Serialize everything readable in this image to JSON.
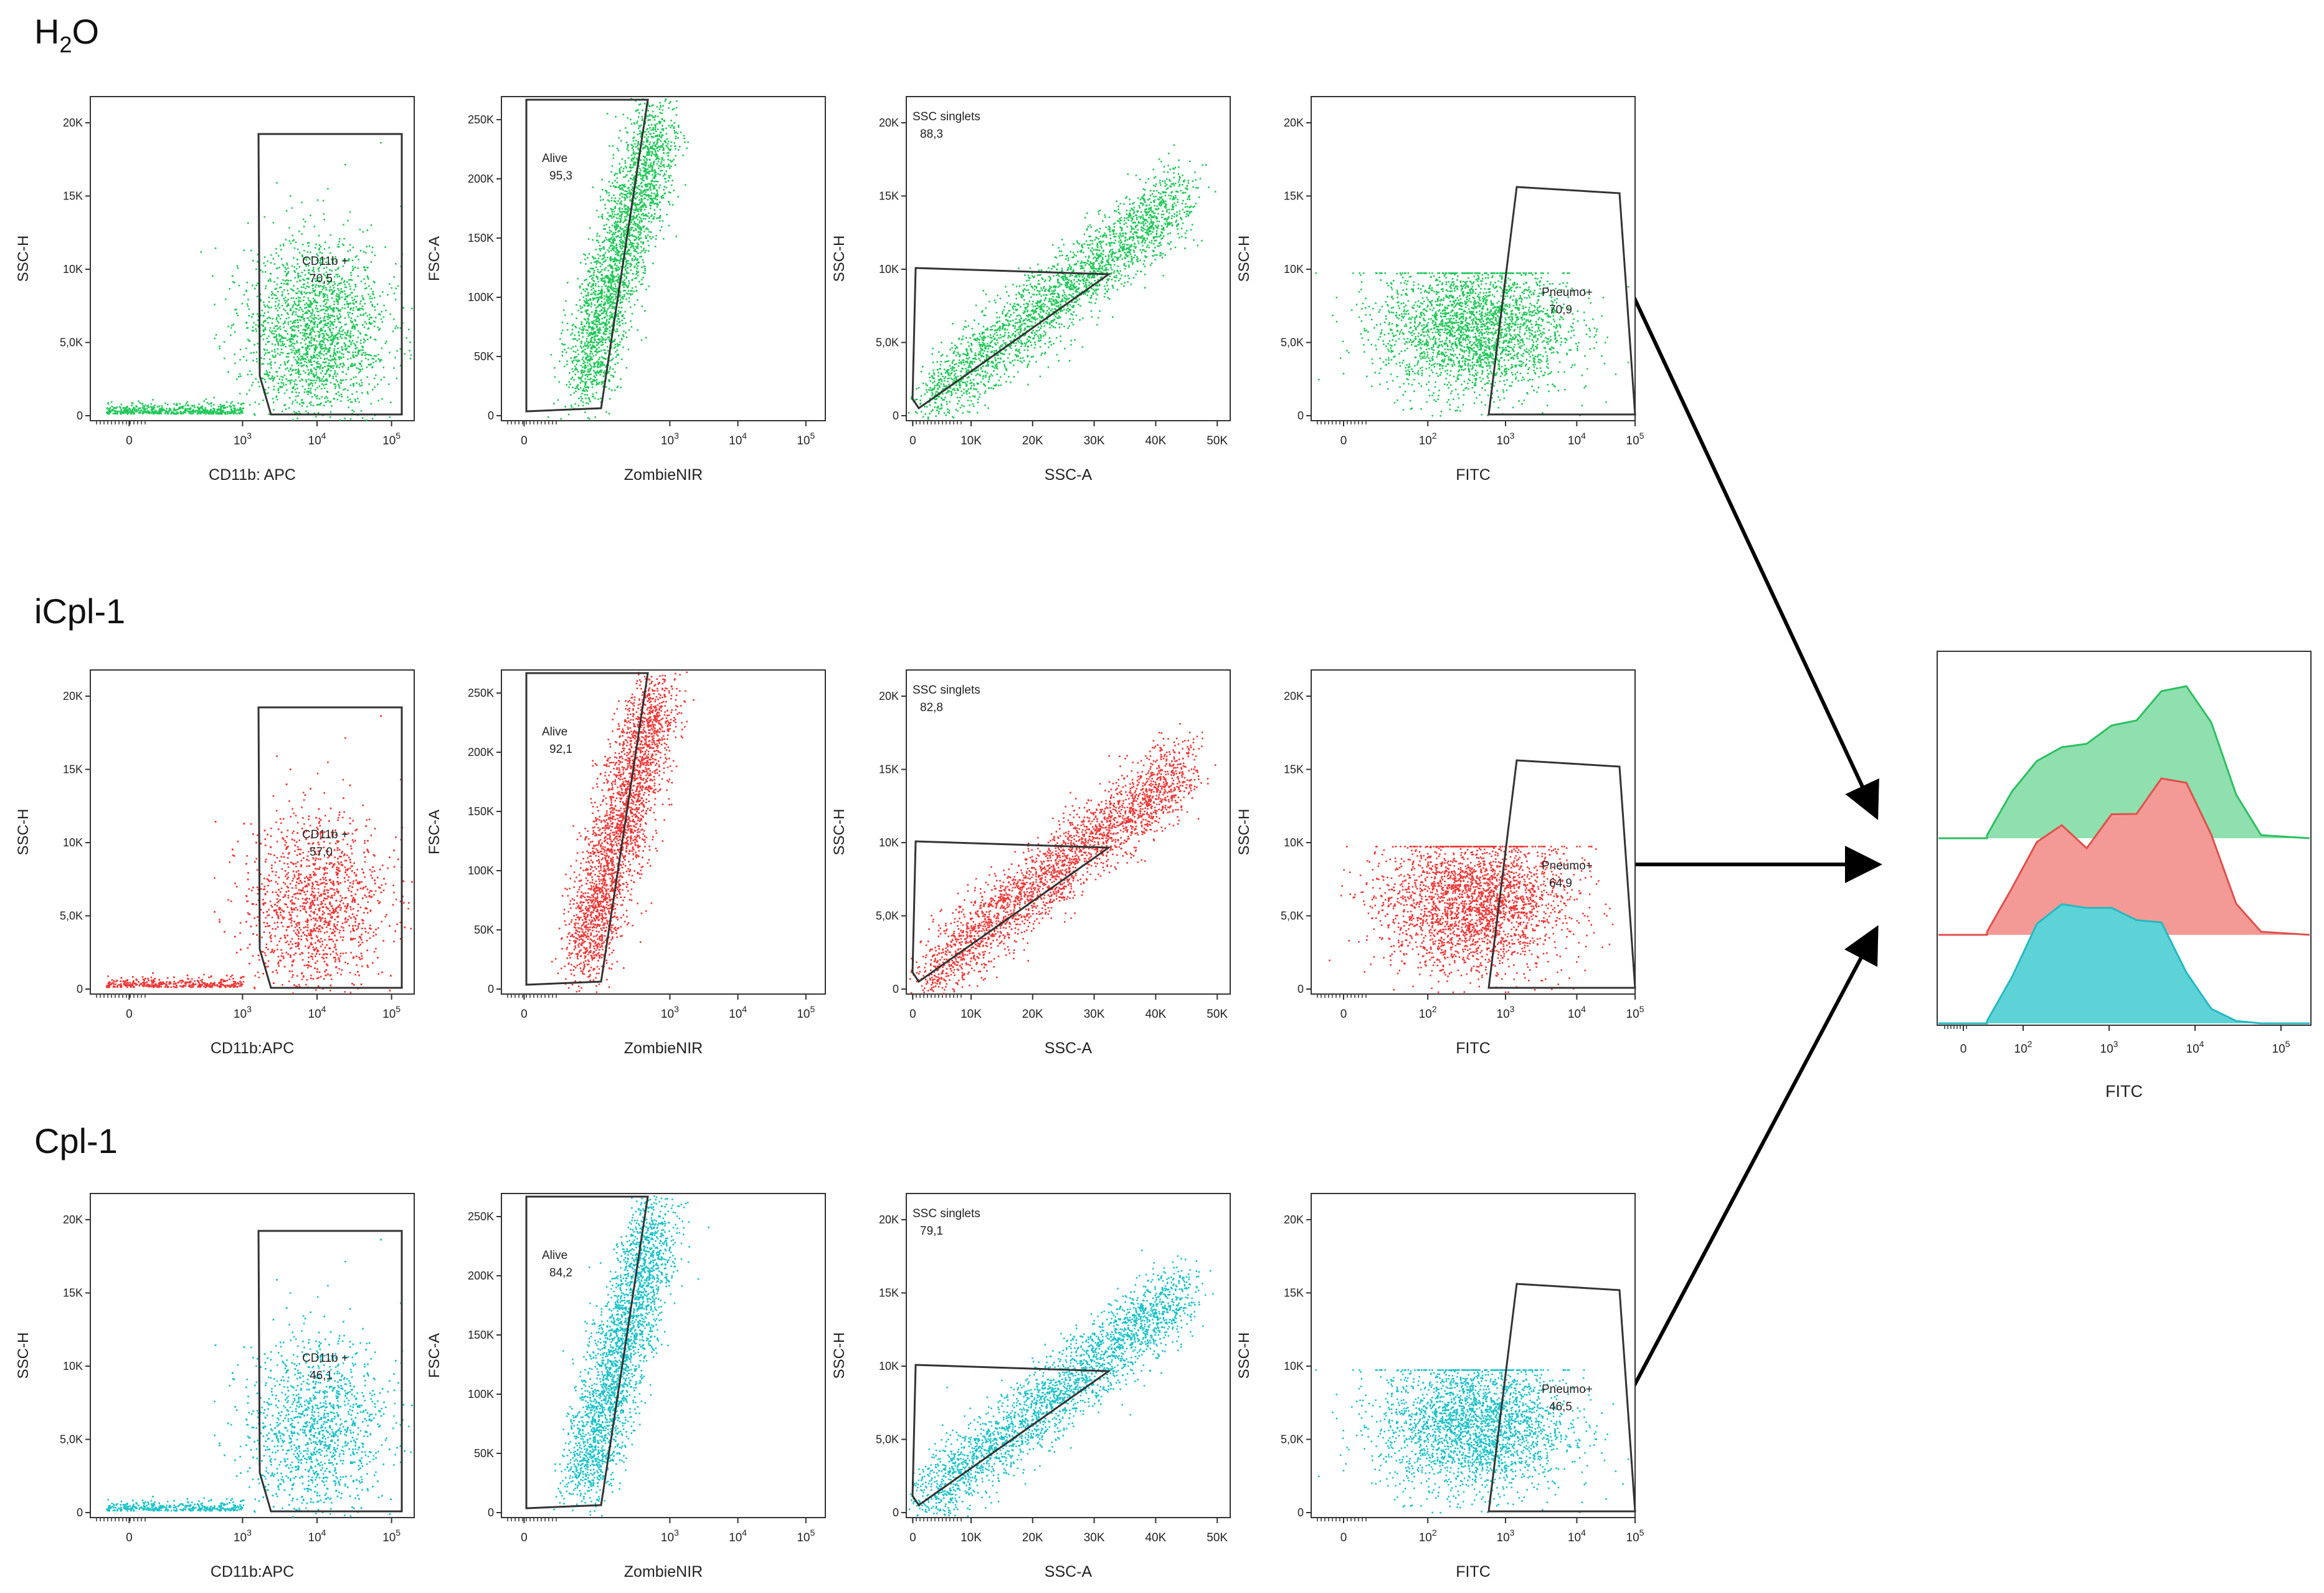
{
  "colors": {
    "h2o": "#1fc858",
    "icpl1": "#f03535",
    "cpl1": "#18c2c8",
    "gate": "#333333",
    "frame": "#333333",
    "arrow": "#000000",
    "hist_fill": {
      "h2o": "#8fe0ae",
      "icpl1": "#f39a96",
      "cpl1": "#5dd3d8"
    },
    "hist_line": {
      "h2o": "#2cbf61",
      "icpl1": "#e0504c",
      "cpl1": "#25b9c0"
    }
  },
  "rows": [
    {
      "key": "h2o",
      "label_main": "H",
      "label_sub": "2",
      "label_tail": "O"
    },
    {
      "key": "icpl1",
      "label_main": "iCpl-1",
      "label_sub": "",
      "label_tail": ""
    },
    {
      "key": "cpl1",
      "label_main": "Cpl-1",
      "label_sub": "",
      "label_tail": ""
    }
  ],
  "axes": {
    "ssc_h_ticks": [
      "0",
      "5,0K",
      "10K",
      "15K",
      "20K"
    ],
    "fsc_a_ticks": [
      "0",
      "50K",
      "100K",
      "150K",
      "200K",
      "250K"
    ],
    "ssc_a_ticks": [
      "0",
      "10K",
      "20K",
      "30K",
      "40K",
      "50K"
    ],
    "log_ticks_full": [
      "0",
      "10^2",
      "10^3",
      "10^4",
      "10^5"
    ],
    "log_ticks_apc": [
      "0",
      "10^3",
      "10^4",
      "10^5"
    ],
    "ylabel_ssc_h": "SSC-H",
    "ylabel_fsc_a": "FSC-A",
    "xlabel_zombie": "ZombieNIR",
    "xlabel_ssc_a": "SSC-A",
    "xlabel_fitc": "FITC"
  },
  "chart_data": [
    {
      "type": "scatter",
      "row": "h2o",
      "panel": 1,
      "xlabel": "CD11b: APC",
      "ylabel": "SSC-H",
      "x_scale": "biexponential",
      "ylim": [
        0,
        20000
      ],
      "gate": "CD11b +",
      "gate_value": "70,5"
    },
    {
      "type": "scatter",
      "row": "h2o",
      "panel": 2,
      "xlabel": "ZombieNIR",
      "ylabel": "FSC-A",
      "x_scale": "biexponential",
      "ylim": [
        0,
        262144
      ],
      "gate": "Alive",
      "gate_value": "95,3"
    },
    {
      "type": "scatter",
      "row": "h2o",
      "panel": 3,
      "xlabel": "SSC-A",
      "ylabel": "SSC-H",
      "xlim": [
        0,
        52000
      ],
      "ylim": [
        0,
        20000
      ],
      "gate": "SSC singlets",
      "gate_value": "88,3"
    },
    {
      "type": "scatter",
      "row": "h2o",
      "panel": 4,
      "xlabel": "FITC",
      "ylabel": "SSC-H",
      "x_scale": "biexponential",
      "ylim": [
        0,
        20000
      ],
      "gate": "Pneumo+",
      "gate_value": "70,9"
    },
    {
      "type": "scatter",
      "row": "icpl1",
      "panel": 1,
      "xlabel": "CD11b:APC",
      "ylabel": "SSC-H",
      "x_scale": "biexponential",
      "ylim": [
        0,
        20000
      ],
      "gate": "CD11b +",
      "gate_value": "57,0"
    },
    {
      "type": "scatter",
      "row": "icpl1",
      "panel": 2,
      "xlabel": "ZombieNIR",
      "ylabel": "FSC-A",
      "x_scale": "biexponential",
      "ylim": [
        0,
        262144
      ],
      "gate": "Alive",
      "gate_value": "92,1"
    },
    {
      "type": "scatter",
      "row": "icpl1",
      "panel": 3,
      "xlabel": "SSC-A",
      "ylabel": "SSC-H",
      "xlim": [
        0,
        52000
      ],
      "ylim": [
        0,
        20000
      ],
      "gate": "SSC singlets",
      "gate_value": "82,8"
    },
    {
      "type": "scatter",
      "row": "icpl1",
      "panel": 4,
      "xlabel": "FITC",
      "ylabel": "SSC-H",
      "x_scale": "biexponential",
      "ylim": [
        0,
        20000
      ],
      "gate": "Pneumo+",
      "gate_value": "64,9"
    },
    {
      "type": "scatter",
      "row": "cpl1",
      "panel": 1,
      "xlabel": "CD11b:APC",
      "ylabel": "SSC-H",
      "x_scale": "biexponential",
      "ylim": [
        0,
        20000
      ],
      "gate": "CD11b +",
      "gate_value": "46,1"
    },
    {
      "type": "scatter",
      "row": "cpl1",
      "panel": 2,
      "xlabel": "ZombieNIR",
      "ylabel": "FSC-A",
      "x_scale": "biexponential",
      "ylim": [
        0,
        262144
      ],
      "gate": "Alive",
      "gate_value": "84,2"
    },
    {
      "type": "scatter",
      "row": "cpl1",
      "panel": 3,
      "xlabel": "SSC-A",
      "ylabel": "SSC-H",
      "xlim": [
        0,
        52000
      ],
      "ylim": [
        0,
        20000
      ],
      "gate": "SSC singlets",
      "gate_value": "79,1"
    },
    {
      "type": "scatter",
      "row": "cpl1",
      "panel": 4,
      "xlabel": "FITC",
      "ylabel": "SSC-H",
      "x_scale": "biexponential",
      "ylim": [
        0,
        20000
      ],
      "gate": "Pneumo+",
      "gate_value": "46,5"
    },
    {
      "type": "area",
      "panel": "overlay-histogram",
      "xlabel": "FITC",
      "x_scale": "biexponential",
      "x_ticks": [
        "0",
        "10^2",
        "10^3",
        "10^4",
        "10^5"
      ],
      "series": [
        {
          "row": "h2o",
          "log10_fitc": [
            2.0,
            2.2,
            2.4,
            2.6,
            2.8,
            3.0,
            3.2,
            3.4,
            3.6,
            3.8,
            4.0,
            4.2
          ],
          "rel_count": [
            0.02,
            0.3,
            0.52,
            0.56,
            0.63,
            0.7,
            0.78,
            0.92,
            1.0,
            0.72,
            0.28,
            0.02
          ]
        },
        {
          "row": "icpl1",
          "log10_fitc": [
            2.0,
            2.2,
            2.4,
            2.6,
            2.8,
            3.0,
            3.2,
            3.4,
            3.6,
            3.8,
            4.0,
            4.2
          ],
          "rel_count": [
            0.02,
            0.3,
            0.62,
            0.68,
            0.58,
            0.75,
            0.8,
            0.98,
            1.0,
            0.62,
            0.2,
            0.02
          ]
        },
        {
          "row": "cpl1",
          "log10_fitc": [
            2.0,
            2.2,
            2.4,
            2.6,
            2.8,
            3.0,
            3.2,
            3.4,
            3.6,
            3.8,
            4.0,
            4.2
          ],
          "rel_count": [
            0.02,
            0.35,
            0.85,
            0.95,
            0.98,
            0.92,
            0.88,
            0.8,
            0.45,
            0.12,
            0.02,
            0.0
          ]
        }
      ]
    }
  ]
}
